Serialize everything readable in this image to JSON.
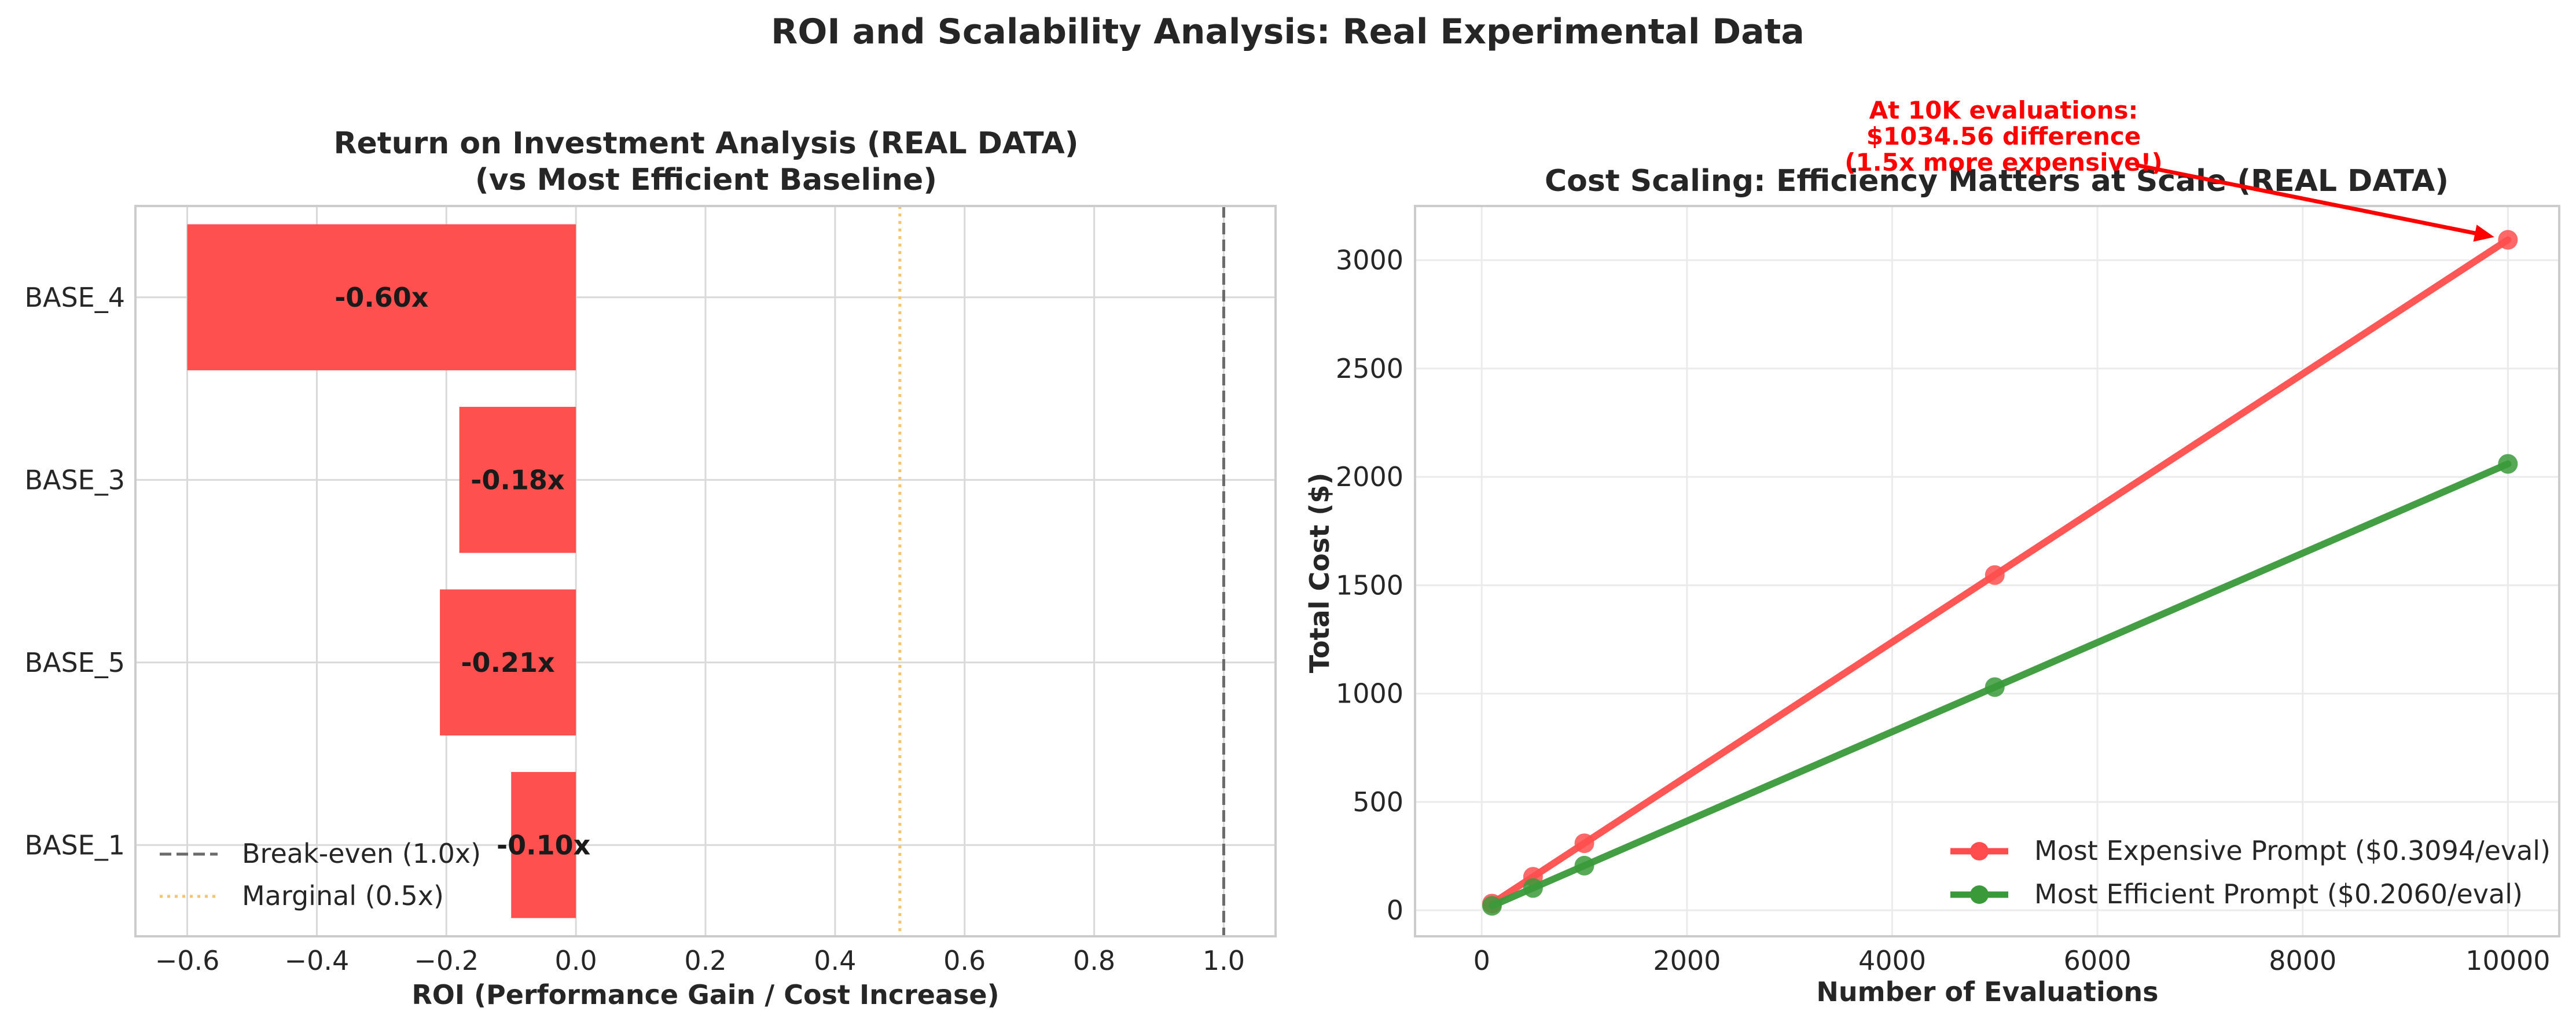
{
  "suptitle": "ROI and Scalability Analysis: Real Experimental Data",
  "chart_data": [
    {
      "type": "bar",
      "orientation": "horizontal",
      "title_line1": "Return on Investment Analysis (REAL DATA)",
      "title_line2": "(vs Most Efficient Baseline)",
      "xlabel": "ROI (Performance Gain / Cost Increase)",
      "ylabel": "",
      "xlim": [
        -0.68,
        1.08
      ],
      "xticks": [
        -0.6,
        -0.4,
        -0.2,
        0.0,
        0.2,
        0.4,
        0.6,
        0.8,
        1.0
      ],
      "xtick_labels": [
        "−0.6",
        "−0.4",
        "−0.2",
        "0.0",
        "0.2",
        "0.4",
        "0.6",
        "0.8",
        "1.0"
      ],
      "grid": true,
      "categories": [
        "BASE_4",
        "BASE_3",
        "BASE_5",
        "BASE_1"
      ],
      "values": [
        -0.6,
        -0.18,
        -0.21,
        -0.1
      ],
      "value_labels": [
        "-0.60x",
        "-0.18x",
        "-0.21x",
        "-0.10x"
      ],
      "bar_color": "#ff4d4d",
      "reference_lines": [
        {
          "x": 1.0,
          "label": "Break-even (1.0x)",
          "style": "dashed",
          "color": "#6b6b6b"
        },
        {
          "x": 0.5,
          "label": "Marginal (0.5x)",
          "style": "dotted",
          "color": "#f7c46c"
        }
      ],
      "legend": {
        "placement": "lower-left",
        "entries": [
          "Break-even (1.0x)",
          "Marginal (0.5x)"
        ]
      }
    },
    {
      "type": "line",
      "title": "Cost Scaling: Efficiency Matters at Scale (REAL DATA)",
      "xlabel": "Number of Evaluations",
      "ylabel": "Total Cost ($)",
      "xlim": [
        -650,
        10500
      ],
      "ylim": [
        -120,
        3250
      ],
      "xticks": [
        0,
        2000,
        4000,
        6000,
        8000,
        10000
      ],
      "yticks": [
        0,
        500,
        1000,
        1500,
        2000,
        2500,
        3000
      ],
      "grid": true,
      "x": [
        100,
        500,
        1000,
        5000,
        10000
      ],
      "series": [
        {
          "name": "Most Expensive Prompt ($0.3094/eval)",
          "color": "#ff4d4d",
          "values": [
            30.94,
            154.7,
            309.4,
            1547,
            3094
          ]
        },
        {
          "name": "Most Efficient Prompt ($0.2060/eval)",
          "color": "#3a9a3a",
          "values": [
            20.6,
            103,
            206,
            1030,
            2060
          ]
        }
      ],
      "legend": {
        "placement": "lower-right"
      },
      "annotation": {
        "lines": [
          "At 10K evaluations:",
          "$1034.56 difference",
          "(1.5x more expensive!)"
        ],
        "arrow_to": {
          "x": 10000,
          "y": 3094
        },
        "color": "#ff0000"
      }
    }
  ]
}
